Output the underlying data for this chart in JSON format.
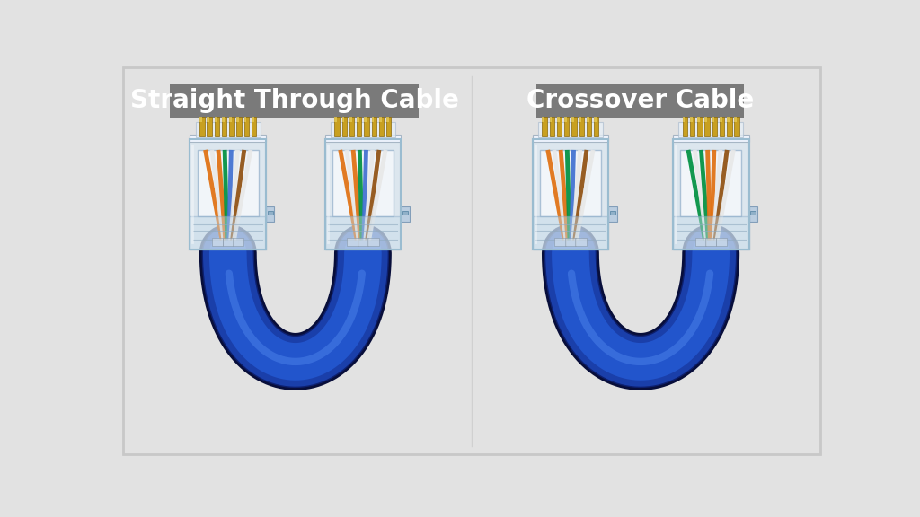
{
  "background_color": "#e2e2e2",
  "border_color": "#c8c8c8",
  "title_left": "Straight Through Cable",
  "title_right": "Crossover Cable",
  "title_bg_color": "#7a7a7a",
  "title_text_color": "#ffffff",
  "title_fontsize": 20,
  "cable_color_outer": "#0d1f6e",
  "cable_color_main": "#1a3faa",
  "cable_color_mid": "#2255cc",
  "cable_color_highlight": "#4a80e8",
  "connector_body_color": "#eef4fa",
  "connector_outline_color": "#9ab0c8",
  "gold_pin_color": "#c8a020",
  "straight_wires_A": [
    "#e07010",
    "#e8e8e8",
    "#e07010",
    "#009040",
    "#4070d0",
    "#e8e8e8",
    "#905010",
    "#e8e8e8"
  ],
  "straight_wires_B": [
    "#e07010",
    "#e8e8e8",
    "#e07010",
    "#009040",
    "#4070d0",
    "#e8e8e8",
    "#905010",
    "#e8e8e8"
  ],
  "crossover_wires_A": [
    "#e07010",
    "#e8e8e8",
    "#e07010",
    "#009040",
    "#4070d0",
    "#e8e8e8",
    "#905010",
    "#e8e8e8"
  ],
  "crossover_wires_B": [
    "#009040",
    "#e8e8e8",
    "#009040",
    "#e07010",
    "#e07010",
    "#e8e8e8",
    "#905010",
    "#e8e8e8"
  ]
}
